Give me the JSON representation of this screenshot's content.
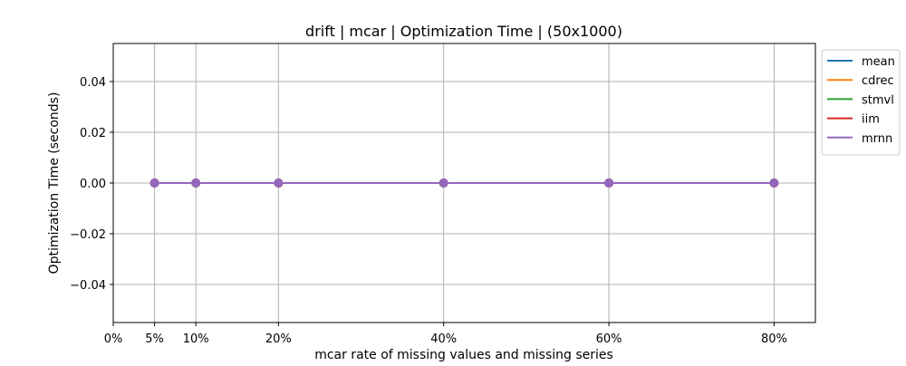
{
  "chart_data": {
    "type": "line",
    "title": "drift | mcar | Optimization Time | (50x1000)",
    "xlabel": "mcar rate of missing values and missing series",
    "ylabel": "Optimization Time (seconds)",
    "x_ticks": [
      {
        "value": 0.0,
        "label": "0%"
      },
      {
        "value": 0.05,
        "label": "5%"
      },
      {
        "value": 0.1,
        "label": "10%"
      },
      {
        "value": 0.2,
        "label": "20%"
      },
      {
        "value": 0.4,
        "label": "40%"
      },
      {
        "value": 0.6,
        "label": "60%"
      },
      {
        "value": 0.8,
        "label": "80%"
      }
    ],
    "y_ticks": [
      {
        "value": 0.04,
        "label": "0.04"
      },
      {
        "value": 0.02,
        "label": "0.02"
      },
      {
        "value": 0.0,
        "label": "0.00"
      },
      {
        "value": -0.02,
        "label": "−0.02"
      },
      {
        "value": -0.04,
        "label": "−0.04"
      }
    ],
    "xlim": [
      0.0,
      0.85
    ],
    "ylim": [
      -0.055,
      0.055
    ],
    "grid": true,
    "legend_position": "outside-top-right",
    "x": [
      0.05,
      0.1,
      0.2,
      0.4,
      0.6,
      0.8
    ],
    "series": [
      {
        "name": "mean",
        "color": "#1f77b4",
        "values": [
          0,
          0,
          0,
          0,
          0,
          0
        ]
      },
      {
        "name": "cdrec",
        "color": "#ff7f0e",
        "values": [
          0,
          0,
          0,
          0,
          0,
          0
        ]
      },
      {
        "name": "stmvl",
        "color": "#2ca02c",
        "values": [
          0,
          0,
          0,
          0,
          0,
          0
        ]
      },
      {
        "name": "iim",
        "color": "#d62728",
        "values": [
          0,
          0,
          0,
          0,
          0,
          0
        ]
      },
      {
        "name": "mrnn",
        "color": "#9467bd",
        "values": [
          0,
          0,
          0,
          0,
          0,
          0
        ]
      }
    ]
  }
}
